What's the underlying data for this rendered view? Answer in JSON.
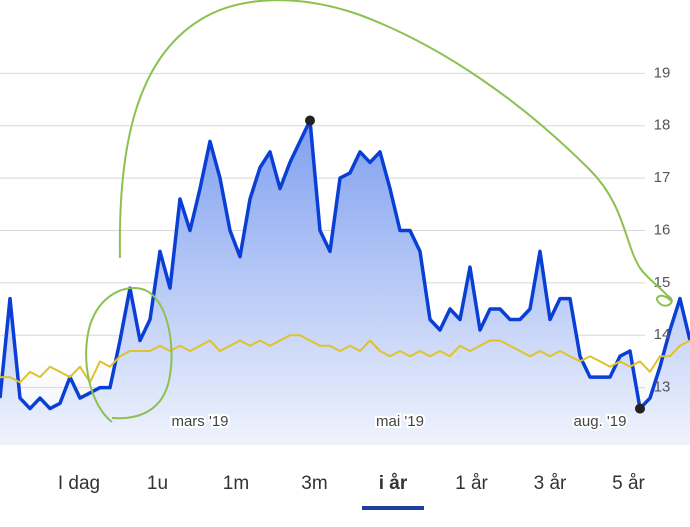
{
  "chart_data": {
    "type": "line",
    "categories": [
      null,
      null,
      null,
      null,
      null,
      null,
      null,
      null,
      null,
      null,
      null,
      null,
      null,
      null,
      null,
      null,
      null,
      null,
      null,
      null,
      "mars '19",
      null,
      null,
      null,
      null,
      null,
      null,
      null,
      null,
      null,
      null,
      null,
      null,
      null,
      null,
      null,
      null,
      null,
      null,
      null,
      "mai '19",
      null,
      null,
      null,
      null,
      null,
      null,
      null,
      null,
      null,
      null,
      null,
      null,
      null,
      null,
      null,
      null,
      null,
      null,
      null,
      "aug. '19",
      null,
      null,
      null,
      null,
      null,
      null,
      null,
      null,
      null
    ],
    "series": [
      {
        "color": "#0a3fd6",
        "values": [
          12.8,
          14.7,
          12.8,
          12.6,
          12.8,
          12.6,
          12.7,
          13.2,
          12.8,
          12.9,
          13.0,
          13.0,
          13.9,
          14.9,
          13.9,
          14.3,
          15.6,
          14.9,
          16.6,
          16.0,
          16.8,
          17.7,
          17.0,
          16.0,
          15.5,
          16.6,
          17.2,
          17.5,
          16.8,
          17.3,
          17.7,
          18.1,
          16.0,
          15.6,
          17.0,
          17.1,
          17.5,
          17.3,
          17.5,
          16.8,
          16.0,
          16.0,
          15.6,
          14.3,
          14.1,
          14.5,
          14.3,
          15.3,
          14.1,
          14.5,
          14.5,
          14.3,
          14.3,
          14.5,
          15.6,
          14.3,
          14.7,
          14.7,
          13.6,
          13.2,
          13.2,
          13.2,
          13.6,
          13.7,
          12.6,
          12.8,
          13.4,
          14.1,
          14.7,
          13.9
        ]
      },
      {
        "color": "#e0c22a",
        "values": [
          13.2,
          13.2,
          13.1,
          13.3,
          13.2,
          13.4,
          13.3,
          13.2,
          13.4,
          13.1,
          13.5,
          13.4,
          13.6,
          13.7,
          13.7,
          13.7,
          13.8,
          13.7,
          13.8,
          13.7,
          13.8,
          13.9,
          13.7,
          13.8,
          13.9,
          13.8,
          13.9,
          13.8,
          13.9,
          14.0,
          14.0,
          13.9,
          13.8,
          13.8,
          13.7,
          13.8,
          13.7,
          13.9,
          13.7,
          13.6,
          13.7,
          13.6,
          13.7,
          13.6,
          13.7,
          13.6,
          13.8,
          13.7,
          13.8,
          13.9,
          13.9,
          13.8,
          13.7,
          13.6,
          13.7,
          13.6,
          13.7,
          13.6,
          13.5,
          13.6,
          13.5,
          13.4,
          13.5,
          13.4,
          13.5,
          13.3,
          13.6,
          13.6,
          13.8,
          13.9
        ]
      }
    ],
    "ylim": [
      12.0,
      20.4
    ],
    "yticks": [
      13,
      14,
      15,
      16,
      17,
      18,
      19
    ],
    "grid": true
  },
  "tabs": [
    "I dag",
    "1u",
    "1m",
    "3m",
    "i år",
    "1 år",
    "3 år",
    "5 år"
  ],
  "active_tab": 4
}
